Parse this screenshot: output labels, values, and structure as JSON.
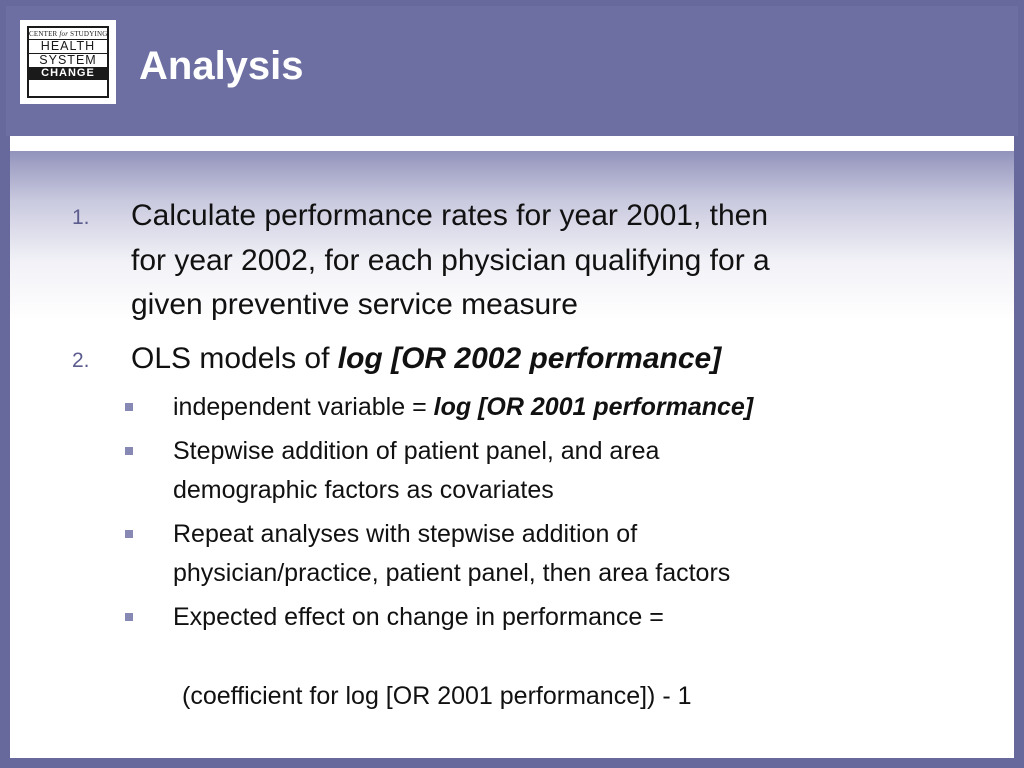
{
  "header": {
    "title": "Analysis",
    "logo": {
      "top_prefix": "CENTER",
      "top_italic": "for",
      "top_suffix": "STUDYING",
      "word1": "HEALTH",
      "word2": "SYSTEM",
      "word3": "CHANGE"
    }
  },
  "colors": {
    "header_bg": "#67689c",
    "title": "#ffffff",
    "bullet": "#8788b4"
  },
  "items": [
    {
      "number": "1.",
      "line1": "Calculate performance rates for year 2001, then",
      "line2": "for year 2002, for each physician qualifying for a",
      "line3": "given preventive service measure"
    },
    {
      "number": "2.",
      "text": "OLS models of ",
      "emphasis": "log [OR 2002 performance]"
    }
  ],
  "subitems": [
    {
      "text": "independent variable = ",
      "emphasis": "log [OR 2001 performance]"
    },
    {
      "line1": "Stepwise addition of patient panel, and area",
      "line2": "demographic factors as covariates"
    },
    {
      "line1": "Repeat analyses with stepwise addition of",
      "line2": "physician/practice, patient panel, then area factors"
    },
    {
      "text": "Expected effect on change in performance ="
    }
  ],
  "formula": "(coefficient for log [OR 2001 performance]) - 1"
}
